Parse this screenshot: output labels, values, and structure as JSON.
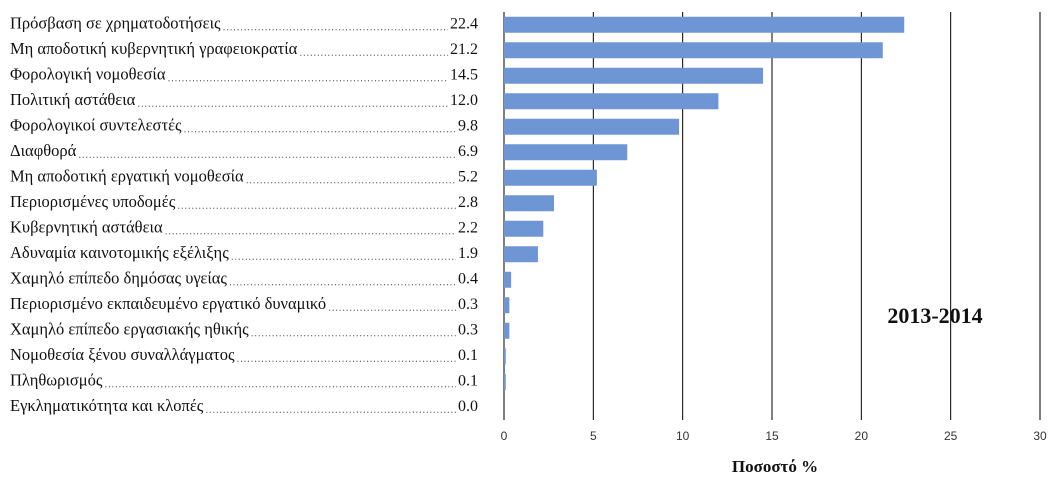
{
  "chart_data": {
    "type": "bar",
    "orientation": "horizontal",
    "categories": [
      "Πρόσβαση σε χρηματοδοτήσεις",
      "Μη αποδοτική κυβερνητική γραφειοκρατία",
      "Φορολογική νομοθεσία",
      "Πολιτική αστάθεια",
      "Φορολογικοί συντελεστές",
      "Διαφθορά",
      "Μη αποδοτική εργατική νομοθεσία",
      "Περιορισμένες υποδομές",
      "Κυβερνητική αστάθεια",
      "Αδυναμία καινοτομικής εξέλιξης",
      "Χαμηλό επίπεδο δημόσας υγείας",
      "Περιορισμένο εκπαιδευμένο εργατικό δυναμικό",
      "Χαμηλό επίπεδο εργασιακής ηθικής",
      "Νομοθεσία ξένου συναλλάγματος",
      "Πληθωρισμός",
      "Εγκληματικότητα και κλοπές"
    ],
    "values": [
      22.4,
      21.2,
      14.5,
      12.0,
      9.8,
      6.9,
      5.2,
      2.8,
      2.2,
      1.9,
      0.4,
      0.3,
      0.3,
      0.1,
      0.1,
      0.0
    ],
    "value_labels": [
      "22.4",
      "21.2",
      "14.5",
      "12.0",
      "9.8",
      "6.9",
      "5.2",
      "2.8",
      "2.2",
      "1.9",
      "0.4",
      "0.3",
      "0.3",
      "0.1",
      "0.1",
      "0.0"
    ],
    "color": "#6f96d4",
    "xlim": [
      0,
      30
    ],
    "xticks": [
      0,
      5,
      10,
      15,
      20,
      25,
      30
    ],
    "grid": true,
    "xlabel": "Ποσοστό %",
    "annotation": "2013-2014"
  }
}
